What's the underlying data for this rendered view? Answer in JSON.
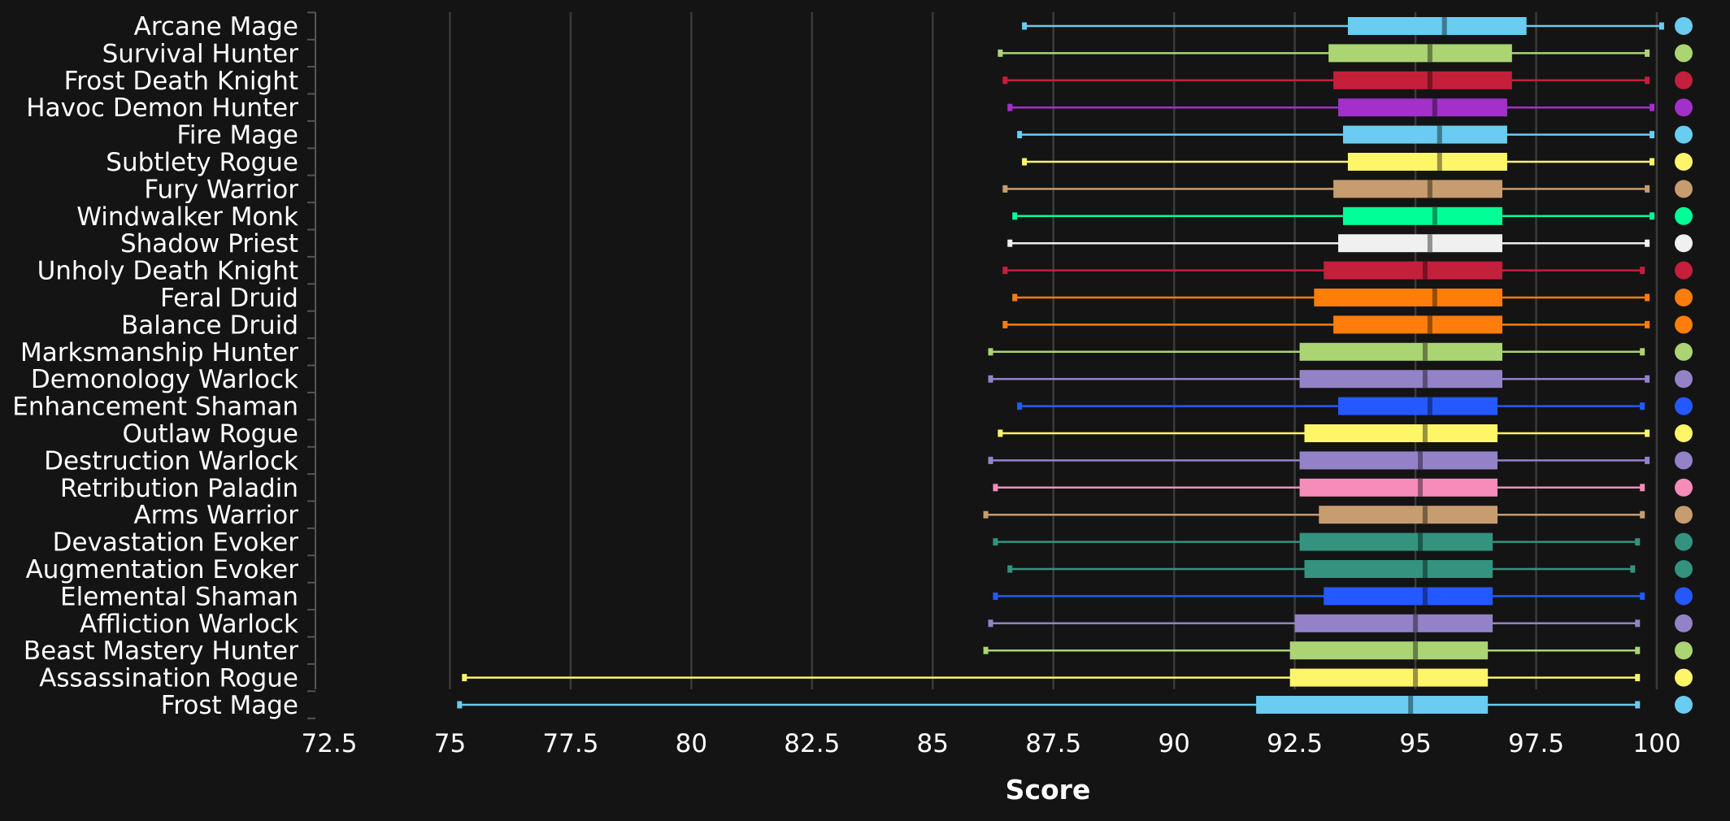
{
  "chart_data": {
    "type": "boxplot",
    "orientation": "horizontal",
    "xlabel": "Score",
    "xlim": [
      72.5,
      100
    ],
    "xticks": [
      72.5,
      75,
      77.5,
      80,
      82.5,
      85,
      87.5,
      90,
      92.5,
      95,
      97.5,
      100
    ],
    "xtick_labels": [
      "72.5",
      "75",
      "77.5",
      "80",
      "82.5",
      "85",
      "87.5",
      "90",
      "92.5",
      "95",
      "97.5",
      "100"
    ],
    "grid": true,
    "legend": "none (colored markers to the right of each row)",
    "series": [
      {
        "name": "Arcane Mage",
        "color": "#69CCF0",
        "min": 86.9,
        "q1": 93.6,
        "median": 95.6,
        "q3": 97.3,
        "max": 100.1
      },
      {
        "name": "Survival Hunter",
        "color": "#ABD473",
        "min": 86.4,
        "q1": 93.2,
        "median": 95.3,
        "q3": 97.0,
        "max": 99.8
      },
      {
        "name": "Frost Death Knight",
        "color": "#C41F3B",
        "min": 86.5,
        "q1": 93.3,
        "median": 95.3,
        "q3": 97.0,
        "max": 99.8
      },
      {
        "name": "Havoc Demon Hunter",
        "color": "#A330C9",
        "min": 86.6,
        "q1": 93.4,
        "median": 95.4,
        "q3": 96.9,
        "max": 99.9
      },
      {
        "name": "Fire Mage",
        "color": "#69CCF0",
        "min": 86.8,
        "q1": 93.5,
        "median": 95.5,
        "q3": 96.9,
        "max": 99.9
      },
      {
        "name": "Subtlety Rogue",
        "color": "#FFF569",
        "min": 86.9,
        "q1": 93.6,
        "median": 95.5,
        "q3": 96.9,
        "max": 99.9
      },
      {
        "name": "Fury Warrior",
        "color": "#C79C6E",
        "min": 86.5,
        "q1": 93.3,
        "median": 95.3,
        "q3": 96.8,
        "max": 99.8
      },
      {
        "name": "Windwalker Monk",
        "color": "#00FF96",
        "min": 86.7,
        "q1": 93.5,
        "median": 95.4,
        "q3": 96.8,
        "max": 99.9
      },
      {
        "name": "Shadow Priest",
        "color": "#F0F0F0",
        "min": 86.6,
        "q1": 93.4,
        "median": 95.3,
        "q3": 96.8,
        "max": 99.8
      },
      {
        "name": "Unholy Death Knight",
        "color": "#C41F3B",
        "min": 86.5,
        "q1": 93.1,
        "median": 95.2,
        "q3": 96.8,
        "max": 99.7
      },
      {
        "name": "Feral Druid",
        "color": "#FF7D0A",
        "min": 86.7,
        "q1": 92.9,
        "median": 95.4,
        "q3": 96.8,
        "max": 99.8
      },
      {
        "name": "Balance Druid",
        "color": "#FF7D0A",
        "min": 86.5,
        "q1": 93.3,
        "median": 95.3,
        "q3": 96.8,
        "max": 99.8
      },
      {
        "name": "Marksmanship Hunter",
        "color": "#ABD473",
        "min": 86.2,
        "q1": 92.6,
        "median": 95.2,
        "q3": 96.8,
        "max": 99.7
      },
      {
        "name": "Demonology Warlock",
        "color": "#9482C9",
        "min": 86.2,
        "q1": 92.6,
        "median": 95.2,
        "q3": 96.8,
        "max": 99.8
      },
      {
        "name": "Enhancement Shaman",
        "color": "#2459FF",
        "min": 86.8,
        "q1": 93.4,
        "median": 95.3,
        "q3": 96.7,
        "max": 99.7
      },
      {
        "name": "Outlaw Rogue",
        "color": "#FFF569",
        "min": 86.4,
        "q1": 92.7,
        "median": 95.2,
        "q3": 96.7,
        "max": 99.8
      },
      {
        "name": "Destruction Warlock",
        "color": "#9482C9",
        "min": 86.2,
        "q1": 92.6,
        "median": 95.1,
        "q3": 96.7,
        "max": 99.8
      },
      {
        "name": "Retribution Paladin",
        "color": "#F58CBA",
        "min": 86.3,
        "q1": 92.6,
        "median": 95.1,
        "q3": 96.7,
        "max": 99.7
      },
      {
        "name": "Arms Warrior",
        "color": "#C79C6E",
        "min": 86.1,
        "q1": 93.0,
        "median": 95.2,
        "q3": 96.7,
        "max": 99.7
      },
      {
        "name": "Devastation Evoker",
        "color": "#33937F",
        "min": 86.3,
        "q1": 92.6,
        "median": 95.1,
        "q3": 96.6,
        "max": 99.6
      },
      {
        "name": "Augmentation Evoker",
        "color": "#33937F",
        "min": 86.6,
        "q1": 92.7,
        "median": 95.2,
        "q3": 96.6,
        "max": 99.5
      },
      {
        "name": "Elemental Shaman",
        "color": "#2459FF",
        "min": 86.3,
        "q1": 93.1,
        "median": 95.2,
        "q3": 96.6,
        "max": 99.7
      },
      {
        "name": "Affliction Warlock",
        "color": "#9482C9",
        "min": 86.2,
        "q1": 92.5,
        "median": 95.0,
        "q3": 96.6,
        "max": 99.6
      },
      {
        "name": "Beast Mastery Hunter",
        "color": "#ABD473",
        "min": 86.1,
        "q1": 92.4,
        "median": 95.0,
        "q3": 96.5,
        "max": 99.6
      },
      {
        "name": "Assassination Rogue",
        "color": "#FFF569",
        "min": 75.3,
        "q1": 92.4,
        "median": 95.0,
        "q3": 96.5,
        "max": 99.6
      },
      {
        "name": "Frost Mage",
        "color": "#69CCF0",
        "min": 75.2,
        "q1": 91.7,
        "median": 94.9,
        "q3": 96.5,
        "max": 99.6
      }
    ]
  }
}
